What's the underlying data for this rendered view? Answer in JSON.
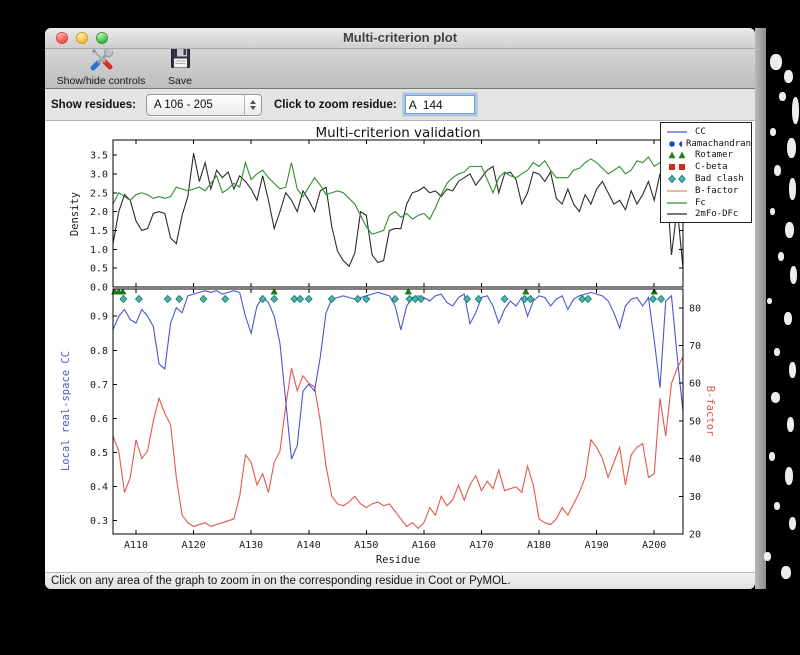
{
  "window": {
    "title": "Multi-criterion plot"
  },
  "toolbar": {
    "show_hide_label": "Show/hide controls",
    "save_label": "Save"
  },
  "controls": {
    "show_residues_label": "Show residues:",
    "residue_range_value": "A 106 - 205",
    "zoom_residue_label": "Click to zoom residue:",
    "zoom_residue_value": "A  144"
  },
  "status": {
    "message": "Click on any area of the graph to zoom in on the corresponding residue in Coot or PyMOL."
  },
  "chart_data": {
    "type": "line",
    "title": "Multi-criterion validation",
    "xlabel": "Residue",
    "x_range": [
      106,
      205
    ],
    "xtick_values": [
      110,
      120,
      130,
      140,
      150,
      160,
      170,
      180,
      190,
      200
    ],
    "xtick_labels": [
      "A110",
      "A120",
      "A130",
      "A140",
      "A150",
      "A160",
      "A170",
      "A180",
      "A190",
      "A200"
    ],
    "top_panel": {
      "ylabel": "Density",
      "ylim": [
        0.0,
        3.9
      ],
      "yticks": [
        0.0,
        0.5,
        1.0,
        1.5,
        2.0,
        2.5,
        3.0,
        3.5
      ],
      "series": [
        {
          "name": "2mFo-DFc",
          "color": "#2b2b2b",
          "values": [
            1.15,
            2.0,
            2.45,
            2.3,
            1.75,
            1.5,
            1.55,
            1.95,
            2.0,
            1.95,
            1.3,
            1.15,
            1.9,
            2.4,
            3.55,
            2.8,
            3.3,
            2.6,
            3.1,
            2.9,
            3.05,
            2.6,
            2.95,
            2.8,
            2.6,
            2.3,
            2.95,
            2.3,
            1.55,
            2.0,
            2.5,
            2.3,
            2.0,
            2.55,
            2.3,
            2.0,
            2.55,
            2.65,
            1.6,
            0.95,
            0.7,
            0.55,
            0.9,
            2.0,
            1.9,
            0.85,
            0.65,
            0.7,
            1.5,
            1.55,
            1.55,
            2.2,
            2.5,
            2.55,
            2.65,
            2.5,
            2.55,
            2.4,
            2.6,
            2.55,
            2.8,
            2.9,
            3.0,
            2.7,
            2.9,
            3.1,
            3.2,
            2.5,
            3.0,
            3.05,
            2.85,
            2.2,
            2.5,
            3.05,
            3.0,
            2.8,
            3.05,
            2.35,
            2.2,
            2.6,
            2.2,
            2.0,
            2.45,
            2.2,
            2.6,
            2.8,
            2.5,
            2.2,
            2.3,
            2.05,
            2.55,
            2.2,
            2.45,
            2.8,
            2.3,
            3.0,
            3.15,
            0.85,
            2.1,
            0.5
          ]
        },
        {
          "name": "Fc",
          "color": "#2f8f2f",
          "values": [
            2.2,
            2.5,
            2.4,
            2.3,
            2.45,
            2.5,
            2.45,
            2.35,
            2.4,
            2.35,
            2.4,
            2.65,
            2.6,
            2.55,
            2.6,
            2.65,
            2.55,
            2.75,
            2.95,
            2.5,
            2.6,
            2.75,
            2.65,
            3.3,
            2.85,
            3.0,
            3.1,
            2.9,
            2.75,
            2.6,
            2.65,
            3.3,
            2.6,
            2.4,
            2.65,
            2.9,
            2.7,
            2.45,
            2.5,
            2.55,
            2.5,
            2.35,
            2.2,
            1.9,
            1.6,
            1.4,
            1.45,
            1.5,
            1.9,
            2.0,
            1.85,
            1.95,
            1.8,
            1.9,
            1.95,
            1.8,
            2.1,
            2.45,
            2.75,
            2.9,
            3.0,
            3.05,
            3.2,
            3.2,
            3.2,
            2.85,
            2.5,
            2.9,
            3.05,
            2.95,
            2.9,
            3.0,
            3.1,
            3.3,
            3.2,
            3.35,
            3.1,
            2.9,
            2.9,
            2.9,
            3.1,
            3.15,
            3.3,
            3.4,
            3.3,
            3.15,
            3.0,
            3.1,
            3.2,
            3.0,
            3.1,
            3.35,
            3.3,
            3.45,
            3.2,
            3.3,
            3.2,
            2.5,
            3.1,
            3.0
          ]
        }
      ]
    },
    "bottom_panel": {
      "left_ylabel": "Local real-space CC",
      "left_ylim": [
        0.26,
        0.98
      ],
      "left_yticks": [
        0.3,
        0.4,
        0.5,
        0.6,
        0.7,
        0.8,
        0.9
      ],
      "left_color": "#4857d0",
      "right_ylabel": "B-factor",
      "right_ylim": [
        20,
        85
      ],
      "right_yticks": [
        20,
        30,
        40,
        50,
        60,
        70,
        80
      ],
      "right_color": "#e2574e",
      "cc_series": {
        "name": "CC",
        "color": "#4857d0",
        "values": [
          0.86,
          0.9,
          0.92,
          0.89,
          0.88,
          0.92,
          0.9,
          0.87,
          0.76,
          0.745,
          0.88,
          0.925,
          0.91,
          0.96,
          0.965,
          0.97,
          0.975,
          0.97,
          0.975,
          0.965,
          0.97,
          0.975,
          0.97,
          0.9,
          0.85,
          0.93,
          0.955,
          0.94,
          0.9,
          0.82,
          0.65,
          0.48,
          0.52,
          0.68,
          0.7,
          0.68,
          0.78,
          0.91,
          0.95,
          0.955,
          0.96,
          0.955,
          0.95,
          0.955,
          0.96,
          0.965,
          0.97,
          0.965,
          0.96,
          0.93,
          0.86,
          0.93,
          0.955,
          0.96,
          0.955,
          0.945,
          0.96,
          0.965,
          0.94,
          0.93,
          0.955,
          0.965,
          0.878,
          0.91,
          0.955,
          0.96,
          0.93,
          0.88,
          0.92,
          0.945,
          0.93,
          0.955,
          0.9,
          0.945,
          0.96,
          0.955,
          0.93,
          0.95,
          0.96,
          0.92,
          0.95,
          0.96,
          0.965,
          0.97,
          0.965,
          0.96,
          0.945,
          0.91,
          0.865,
          0.93,
          0.95,
          0.955,
          0.93,
          0.955,
          0.83,
          0.69,
          0.945,
          0.96,
          0.78,
          0.62
        ]
      },
      "bfactor_series": {
        "name": "B-factor",
        "color": "#e2574e",
        "values": [
          46,
          42,
          31,
          35,
          45,
          40,
          42,
          50,
          56,
          52,
          49,
          35,
          25,
          23,
          22,
          22.5,
          23,
          22,
          22.5,
          23,
          23.5,
          24,
          30,
          41,
          39,
          33,
          36,
          31,
          39,
          42,
          54,
          64,
          58,
          62,
          60,
          59,
          50,
          38,
          30,
          28,
          27.5,
          28.5,
          30,
          28,
          27,
          28,
          28.5,
          27.5,
          28,
          26,
          24,
          22,
          23,
          21.5,
          23,
          27,
          25,
          30,
          27.5,
          29,
          33,
          29,
          33,
          35.5,
          31.5,
          34,
          32,
          37,
          31.5,
          32,
          32.5,
          31,
          38,
          33,
          24,
          23,
          22.5,
          24,
          27,
          25,
          28,
          31,
          35,
          45,
          43,
          40,
          35,
          39,
          43,
          33,
          41,
          43,
          44,
          35,
          36,
          56,
          46,
          60,
          64,
          67
        ]
      },
      "markers": {
        "rotamer": {
          "name": "Rotamer",
          "color": "#1d801d",
          "edge": "#0f4f0f",
          "residues": [
            106.3,
            107.0,
            107.7,
            134,
            157.3,
            177.7,
            200
          ]
        },
        "bad_clash": {
          "name": "Bad clash",
          "color": "#44b6ac",
          "edge": "#1e6e66",
          "residues": [
            107.8,
            110.5,
            115.5,
            117.5,
            121.7,
            125.5,
            132,
            134,
            137.5,
            138.5,
            140,
            144,
            148.5,
            150,
            155,
            157.5,
            158.5,
            159.5,
            167.5,
            169.5,
            174,
            177.5,
            178.5,
            187.5,
            188.5,
            199.8,
            201.2
          ]
        }
      }
    },
    "legend": {
      "position": "upper right",
      "entries": [
        {
          "label": "CC",
          "type": "line",
          "color": "#4857d0"
        },
        {
          "label": "Ramachandran",
          "type": "circle",
          "color": "#2546cc"
        },
        {
          "label": "Rotamer",
          "type": "triangle",
          "color": "#1d801d"
        },
        {
          "label": "C-beta",
          "type": "square",
          "color": "#cc2b1d"
        },
        {
          "label": "Bad clash",
          "type": "diamond",
          "color": "#44b6ac"
        },
        {
          "label": "B-factor",
          "type": "line",
          "color": "#ee8271"
        },
        {
          "label": "Fc",
          "type": "line",
          "color": "#2f8f2f"
        },
        {
          "label": "2mFo-DFc",
          "type": "line",
          "color": "#2b2b2b"
        }
      ]
    }
  }
}
